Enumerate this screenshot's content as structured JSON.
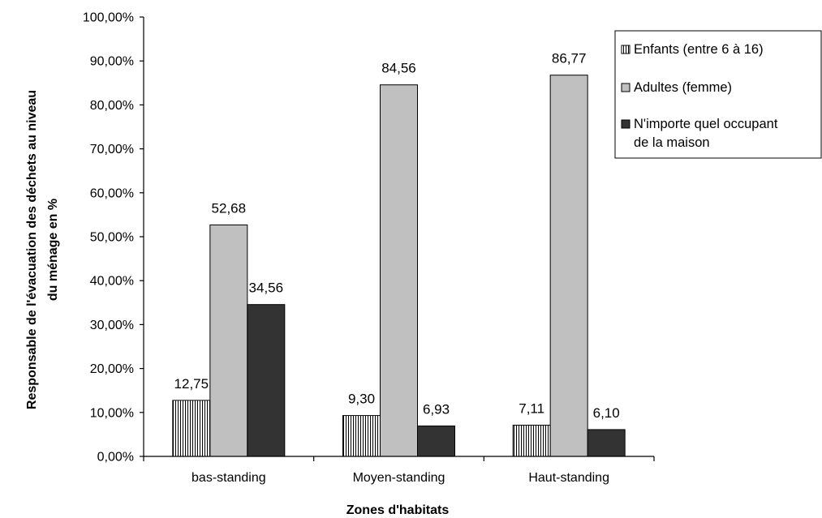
{
  "chart_data": {
    "type": "bar",
    "categories": [
      "bas-standing",
      "Moyen-standing",
      "Haut-standing"
    ],
    "series": [
      {
        "name": "Enfants (entre 6 à 16)",
        "values": [
          12.75,
          9.3,
          7.11
        ],
        "labels": [
          "12,75",
          "9,30",
          "7,11"
        ],
        "pattern": "vertical-stripes",
        "color": "#ffffff"
      },
      {
        "name": "Adultes (femme)",
        "values": [
          52.68,
          84.56,
          86.77
        ],
        "labels": [
          "52,68",
          "84,56",
          "86,77"
        ],
        "pattern": "solid",
        "color": "#c0c0c0"
      },
      {
        "name": "N'importe quel occupant de la maison",
        "name_lines": [
          "N'importe quel occupant",
          "de la maison"
        ],
        "values": [
          34.56,
          6.93,
          6.1
        ],
        "labels": [
          "34,56",
          "6,93",
          "6,10"
        ],
        "pattern": "solid",
        "color": "#333333"
      }
    ],
    "xlabel": "Zones d'habitats",
    "ylabel_lines": [
      "Responsable de l'évacuation des déchets au niveau",
      "du ménage en %"
    ],
    "ylim": [
      0,
      100
    ],
    "yticks": [
      0,
      10,
      20,
      30,
      40,
      50,
      60,
      70,
      80,
      90,
      100
    ],
    "ytick_labels": [
      "0,00%",
      "10,00%",
      "20,00%",
      "30,00%",
      "40,00%",
      "50,00%",
      "60,00%",
      "70,00%",
      "80,00%",
      "90,00%",
      "100,00%"
    ],
    "grid": false,
    "legend_position": "top-right"
  }
}
